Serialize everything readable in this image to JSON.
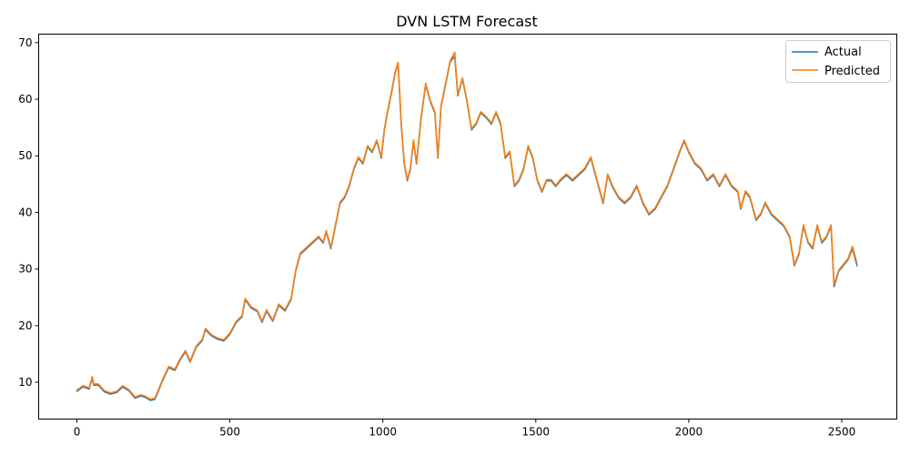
{
  "chart_data": {
    "type": "line",
    "title": "DVN LSTM Forecast",
    "xlabel": "",
    "ylabel": "",
    "xlim": [
      -125,
      2680
    ],
    "ylim": [
      3.5,
      71.5
    ],
    "x_ticks": [
      0,
      500,
      1000,
      1500,
      2000,
      2500
    ],
    "y_ticks": [
      10,
      20,
      30,
      40,
      50,
      60,
      70
    ],
    "grid": false,
    "legend_position": "top-right",
    "series": [
      {
        "name": "Actual",
        "color": "#1f77b4",
        "points": [
          [
            0,
            8.4
          ],
          [
            20,
            9.2
          ],
          [
            40,
            8.8
          ],
          [
            50,
            10.8
          ],
          [
            55,
            9.5
          ],
          [
            70,
            9.5
          ],
          [
            90,
            8.3
          ],
          [
            110,
            7.9
          ],
          [
            130,
            8.2
          ],
          [
            150,
            9.2
          ],
          [
            170,
            8.5
          ],
          [
            190,
            7.2
          ],
          [
            210,
            7.6
          ],
          [
            225,
            7.3
          ],
          [
            240,
            6.8
          ],
          [
            255,
            7.0
          ],
          [
            265,
            8.3
          ],
          [
            280,
            10.3
          ],
          [
            300,
            12.6
          ],
          [
            320,
            12.1
          ],
          [
            340,
            14.2
          ],
          [
            355,
            15.4
          ],
          [
            370,
            13.6
          ],
          [
            390,
            16.2
          ],
          [
            410,
            17.4
          ],
          [
            420,
            19.3
          ],
          [
            440,
            18.2
          ],
          [
            460,
            17.6
          ],
          [
            480,
            17.3
          ],
          [
            500,
            18.5
          ],
          [
            520,
            20.5
          ],
          [
            540,
            21.6
          ],
          [
            550,
            24.6
          ],
          [
            570,
            23.1
          ],
          [
            590,
            22.5
          ],
          [
            605,
            20.6
          ],
          [
            620,
            22.6
          ],
          [
            640,
            20.8
          ],
          [
            660,
            23.6
          ],
          [
            680,
            22.6
          ],
          [
            700,
            24.6
          ],
          [
            715,
            29.6
          ],
          [
            730,
            32.6
          ],
          [
            750,
            33.6
          ],
          [
            770,
            34.6
          ],
          [
            790,
            35.6
          ],
          [
            805,
            34.6
          ],
          [
            815,
            36.6
          ],
          [
            830,
            33.6
          ],
          [
            845,
            37.6
          ],
          [
            860,
            41.6
          ],
          [
            875,
            42.6
          ],
          [
            890,
            44.6
          ],
          [
            905,
            47.6
          ],
          [
            920,
            49.6
          ],
          [
            935,
            48.6
          ],
          [
            950,
            51.6
          ],
          [
            965,
            50.6
          ],
          [
            980,
            52.6
          ],
          [
            995,
            49.6
          ],
          [
            1005,
            54.6
          ],
          [
            1015,
            57.6
          ],
          [
            1030,
            61.6
          ],
          [
            1040,
            64.6
          ],
          [
            1050,
            66.3
          ],
          [
            1060,
            55.6
          ],
          [
            1070,
            48.6
          ],
          [
            1080,
            45.6
          ],
          [
            1090,
            47.6
          ],
          [
            1100,
            52.6
          ],
          [
            1110,
            48.6
          ],
          [
            1125,
            56.6
          ],
          [
            1140,
            62.6
          ],
          [
            1155,
            59.6
          ],
          [
            1170,
            57.6
          ],
          [
            1180,
            49.6
          ],
          [
            1190,
            58.6
          ],
          [
            1205,
            62.6
          ],
          [
            1220,
            66.6
          ],
          [
            1235,
            67.6
          ],
          [
            1245,
            60.6
          ],
          [
            1260,
            63.6
          ],
          [
            1275,
            59.6
          ],
          [
            1290,
            54.6
          ],
          [
            1305,
            55.6
          ],
          [
            1320,
            57.6
          ],
          [
            1340,
            56.6
          ],
          [
            1355,
            55.6
          ],
          [
            1370,
            57.6
          ],
          [
            1385,
            55.6
          ],
          [
            1400,
            49.6
          ],
          [
            1415,
            50.6
          ],
          [
            1430,
            44.6
          ],
          [
            1445,
            45.6
          ],
          [
            1460,
            47.6
          ],
          [
            1475,
            51.6
          ],
          [
            1490,
            49.6
          ],
          [
            1505,
            45.6
          ],
          [
            1520,
            43.6
          ],
          [
            1535,
            45.6
          ],
          [
            1550,
            45.6
          ],
          [
            1565,
            44.6
          ],
          [
            1580,
            45.6
          ],
          [
            1600,
            46.6
          ],
          [
            1620,
            45.6
          ],
          [
            1640,
            46.6
          ],
          [
            1660,
            47.6
          ],
          [
            1680,
            49.6
          ],
          [
            1700,
            45.6
          ],
          [
            1720,
            41.6
          ],
          [
            1735,
            46.6
          ],
          [
            1750,
            44.6
          ],
          [
            1770,
            42.6
          ],
          [
            1790,
            41.6
          ],
          [
            1810,
            42.6
          ],
          [
            1830,
            44.6
          ],
          [
            1850,
            41.6
          ],
          [
            1870,
            39.6
          ],
          [
            1890,
            40.6
          ],
          [
            1910,
            42.6
          ],
          [
            1930,
            44.6
          ],
          [
            1950,
            47.6
          ],
          [
            1970,
            50.6
          ],
          [
            1985,
            52.6
          ],
          [
            2000,
            50.6
          ],
          [
            2020,
            48.6
          ],
          [
            2040,
            47.6
          ],
          [
            2060,
            45.6
          ],
          [
            2080,
            46.6
          ],
          [
            2100,
            44.6
          ],
          [
            2120,
            46.6
          ],
          [
            2140,
            44.6
          ],
          [
            2160,
            43.6
          ],
          [
            2170,
            40.6
          ],
          [
            2185,
            43.6
          ],
          [
            2200,
            42.6
          ],
          [
            2220,
            38.6
          ],
          [
            2235,
            39.6
          ],
          [
            2250,
            41.6
          ],
          [
            2270,
            39.6
          ],
          [
            2290,
            38.6
          ],
          [
            2310,
            37.6
          ],
          [
            2330,
            35.6
          ],
          [
            2345,
            30.6
          ],
          [
            2360,
            32.6
          ],
          [
            2375,
            37.6
          ],
          [
            2390,
            34.6
          ],
          [
            2405,
            33.6
          ],
          [
            2420,
            37.6
          ],
          [
            2435,
            34.6
          ],
          [
            2450,
            35.6
          ],
          [
            2465,
            37.6
          ],
          [
            2475,
            26.9
          ],
          [
            2490,
            29.6
          ],
          [
            2505,
            30.6
          ],
          [
            2520,
            31.6
          ],
          [
            2535,
            33.6
          ],
          [
            2550,
            30.6
          ]
        ]
      },
      {
        "name": "Predicted",
        "color": "#ff7f0e",
        "points": [
          [
            0,
            8.6
          ],
          [
            20,
            9.4
          ],
          [
            40,
            9.0
          ],
          [
            50,
            11.0
          ],
          [
            55,
            9.7
          ],
          [
            70,
            9.7
          ],
          [
            90,
            8.5
          ],
          [
            110,
            8.1
          ],
          [
            130,
            8.4
          ],
          [
            150,
            9.4
          ],
          [
            170,
            8.7
          ],
          [
            190,
            7.4
          ],
          [
            210,
            7.8
          ],
          [
            225,
            7.5
          ],
          [
            240,
            7.0
          ],
          [
            255,
            7.2
          ],
          [
            265,
            8.5
          ],
          [
            280,
            10.5
          ],
          [
            300,
            12.8
          ],
          [
            320,
            12.3
          ],
          [
            340,
            14.4
          ],
          [
            355,
            15.6
          ],
          [
            370,
            13.8
          ],
          [
            390,
            16.4
          ],
          [
            410,
            17.6
          ],
          [
            420,
            19.5
          ],
          [
            440,
            18.4
          ],
          [
            460,
            17.8
          ],
          [
            480,
            17.5
          ],
          [
            500,
            18.7
          ],
          [
            520,
            20.7
          ],
          [
            540,
            21.8
          ],
          [
            550,
            24.8
          ],
          [
            570,
            23.3
          ],
          [
            590,
            22.7
          ],
          [
            605,
            20.8
          ],
          [
            620,
            22.8
          ],
          [
            640,
            21.0
          ],
          [
            660,
            23.8
          ],
          [
            680,
            22.8
          ],
          [
            700,
            24.8
          ],
          [
            715,
            29.8
          ],
          [
            730,
            32.8
          ],
          [
            750,
            33.8
          ],
          [
            770,
            34.8
          ],
          [
            790,
            35.8
          ],
          [
            805,
            34.8
          ],
          [
            815,
            36.8
          ],
          [
            830,
            33.8
          ],
          [
            845,
            37.8
          ],
          [
            860,
            41.8
          ],
          [
            875,
            42.8
          ],
          [
            890,
            44.8
          ],
          [
            905,
            47.8
          ],
          [
            920,
            49.8
          ],
          [
            935,
            48.8
          ],
          [
            950,
            51.8
          ],
          [
            965,
            50.8
          ],
          [
            980,
            52.8
          ],
          [
            995,
            49.8
          ],
          [
            1005,
            54.8
          ],
          [
            1015,
            57.8
          ],
          [
            1030,
            61.8
          ],
          [
            1040,
            64.8
          ],
          [
            1050,
            66.5
          ],
          [
            1060,
            55.8
          ],
          [
            1070,
            48.8
          ],
          [
            1080,
            45.8
          ],
          [
            1090,
            47.8
          ],
          [
            1100,
            52.8
          ],
          [
            1110,
            48.8
          ],
          [
            1125,
            56.8
          ],
          [
            1140,
            62.8
          ],
          [
            1155,
            59.8
          ],
          [
            1170,
            57.8
          ],
          [
            1180,
            49.8
          ],
          [
            1190,
            58.8
          ],
          [
            1205,
            62.8
          ],
          [
            1220,
            66.8
          ],
          [
            1235,
            68.3
          ],
          [
            1245,
            60.8
          ],
          [
            1260,
            63.8
          ],
          [
            1275,
            59.8
          ],
          [
            1290,
            54.8
          ],
          [
            1305,
            55.8
          ],
          [
            1320,
            57.8
          ],
          [
            1340,
            56.8
          ],
          [
            1355,
            55.8
          ],
          [
            1370,
            57.8
          ],
          [
            1385,
            55.8
          ],
          [
            1400,
            49.8
          ],
          [
            1415,
            50.8
          ],
          [
            1430,
            44.8
          ],
          [
            1445,
            45.8
          ],
          [
            1460,
            47.8
          ],
          [
            1475,
            51.8
          ],
          [
            1490,
            49.8
          ],
          [
            1505,
            45.8
          ],
          [
            1520,
            43.8
          ],
          [
            1535,
            45.8
          ],
          [
            1550,
            45.8
          ],
          [
            1565,
            44.8
          ],
          [
            1580,
            45.8
          ],
          [
            1600,
            46.8
          ],
          [
            1620,
            45.8
          ],
          [
            1640,
            46.8
          ],
          [
            1660,
            47.8
          ],
          [
            1680,
            49.8
          ],
          [
            1700,
            45.8
          ],
          [
            1720,
            41.8
          ],
          [
            1735,
            46.8
          ],
          [
            1750,
            44.8
          ],
          [
            1770,
            42.8
          ],
          [
            1790,
            41.8
          ],
          [
            1810,
            42.8
          ],
          [
            1830,
            44.8
          ],
          [
            1850,
            41.8
          ],
          [
            1870,
            39.8
          ],
          [
            1890,
            40.8
          ],
          [
            1910,
            42.8
          ],
          [
            1930,
            44.8
          ],
          [
            1950,
            47.8
          ],
          [
            1970,
            50.8
          ],
          [
            1985,
            52.8
          ],
          [
            2000,
            50.8
          ],
          [
            2020,
            48.8
          ],
          [
            2040,
            47.8
          ],
          [
            2060,
            45.8
          ],
          [
            2080,
            46.8
          ],
          [
            2100,
            44.8
          ],
          [
            2120,
            46.8
          ],
          [
            2140,
            44.8
          ],
          [
            2160,
            43.8
          ],
          [
            2170,
            40.8
          ],
          [
            2185,
            43.8
          ],
          [
            2200,
            42.8
          ],
          [
            2220,
            38.8
          ],
          [
            2235,
            39.8
          ],
          [
            2250,
            41.8
          ],
          [
            2270,
            39.8
          ],
          [
            2290,
            38.8
          ],
          [
            2310,
            37.8
          ],
          [
            2330,
            35.8
          ],
          [
            2345,
            30.8
          ],
          [
            2360,
            32.8
          ],
          [
            2375,
            37.8
          ],
          [
            2390,
            34.8
          ],
          [
            2405,
            33.8
          ],
          [
            2420,
            37.8
          ],
          [
            2435,
            34.8
          ],
          [
            2450,
            35.8
          ],
          [
            2465,
            37.8
          ],
          [
            2475,
            27.3
          ],
          [
            2490,
            29.8
          ],
          [
            2505,
            30.8
          ],
          [
            2520,
            31.8
          ],
          [
            2535,
            34.0
          ],
          [
            2550,
            31.0
          ]
        ]
      }
    ]
  }
}
